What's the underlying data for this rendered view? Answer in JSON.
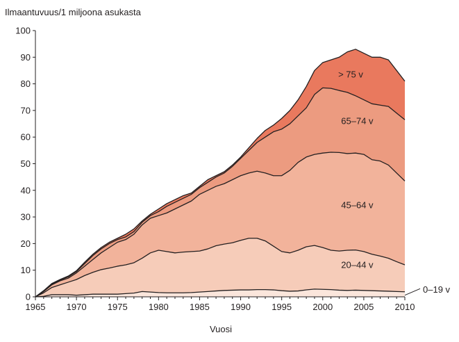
{
  "chart_data": {
    "type": "area",
    "stacked": true,
    "ylabel": "Ilmaantuvuus/1 miljoona asukasta",
    "xlabel": "Vuosi",
    "xlim": [
      1965,
      2010
    ],
    "ylim": [
      0,
      100
    ],
    "x_ticks": [
      1965,
      1970,
      1975,
      1980,
      1985,
      1990,
      1995,
      2000,
      2005,
      2010
    ],
    "y_ticks": [
      0,
      10,
      20,
      30,
      40,
      50,
      60,
      70,
      80,
      90,
      100
    ],
    "x": [
      1965,
      1966,
      1967,
      1968,
      1969,
      1970,
      1971,
      1972,
      1973,
      1974,
      1975,
      1976,
      1977,
      1978,
      1979,
      1980,
      1981,
      1982,
      1983,
      1984,
      1985,
      1986,
      1987,
      1988,
      1989,
      1990,
      1991,
      1992,
      1993,
      1994,
      1995,
      1996,
      1997,
      1998,
      1999,
      2000,
      2001,
      2002,
      2003,
      2004,
      2005,
      2006,
      2007,
      2008,
      2009,
      2010
    ],
    "cumulative_series": [
      {
        "name": "0–19 v",
        "color": "#fbe6dc",
        "top": [
          0,
          0.2,
          0.8,
          0.8,
          0.8,
          0.6,
          0.8,
          1,
          1,
          1,
          1,
          1.2,
          1.4,
          2,
          1.8,
          1.6,
          1.5,
          1.5,
          1.5,
          1.6,
          1.8,
          2,
          2.2,
          2.4,
          2.5,
          2.6,
          2.6,
          2.7,
          2.7,
          2.6,
          2.3,
          2.1,
          2.2,
          2.6,
          2.9,
          2.8,
          2.7,
          2.5,
          2.4,
          2.5,
          2.4,
          2.3,
          2.2,
          2.1,
          2,
          1.9
        ]
      },
      {
        "name": "20–44 v",
        "color": "#f6ccb9",
        "top": [
          0,
          1.5,
          3.5,
          4.5,
          5.5,
          6.5,
          8,
          9.2,
          10.2,
          10.8,
          11.5,
          12,
          12.8,
          14.5,
          16.5,
          17.5,
          17,
          16.5,
          16.8,
          17,
          17.2,
          18,
          19.2,
          19.8,
          20.3,
          21.2,
          22,
          22,
          21,
          19,
          17,
          16.5,
          17.5,
          18.8,
          19.3,
          18.5,
          17.5,
          17.2,
          17.5,
          17.6,
          17,
          16,
          15.3,
          14.5,
          13.2,
          12
        ]
      },
      {
        "name": "45–64 v",
        "color": "#f2b39b",
        "top": [
          0,
          2,
          4.5,
          6,
          7,
          9,
          11.5,
          14,
          16.5,
          18.5,
          20.5,
          21.5,
          23.5,
          27,
          29.5,
          30.5,
          31.5,
          33,
          34.5,
          36,
          38.5,
          40,
          41.5,
          42.5,
          44,
          45.5,
          46.5,
          47.2,
          46.5,
          45.5,
          45.5,
          47.5,
          50.5,
          52.5,
          53.5,
          54,
          54.3,
          54.2,
          53.8,
          54,
          53.5,
          51.5,
          51,
          49.5,
          46.5,
          43.5
        ]
      },
      {
        "name": "65–74 v",
        "color": "#ec9b80",
        "top": [
          0,
          2.2,
          4.8,
          6.3,
          7.5,
          9.5,
          12.5,
          15.5,
          18,
          20,
          21.5,
          22.5,
          24.5,
          28,
          30.5,
          32,
          34,
          35.5,
          37,
          38.5,
          41,
          43,
          45,
          46.5,
          49,
          52,
          55,
          58,
          60,
          62,
          63,
          65,
          68,
          71,
          76,
          78.5,
          78.3,
          77.5,
          76.8,
          75.5,
          74,
          72.5,
          72,
          71.5,
          69,
          66.5
        ]
      },
      {
        "name": "> 75 v",
        "color": "#e9795e",
        "top": [
          0,
          2.3,
          5,
          6.5,
          7.8,
          9.8,
          13,
          16,
          18.5,
          20.5,
          22,
          23.5,
          25.5,
          28.5,
          31,
          33,
          35,
          36.5,
          38,
          39,
          41.5,
          44,
          45.5,
          47,
          49.5,
          52.5,
          56,
          59.5,
          62.5,
          64.5,
          67,
          70,
          74,
          79,
          85,
          88,
          89,
          90,
          92,
          93,
          91.5,
          90,
          90,
          89,
          85,
          81
        ]
      }
    ],
    "annotations": [
      {
        "text": "> 75 v",
        "series": "> 75 v",
        "x": 2003.4,
        "y": 83.5
      },
      {
        "text": "65–74 v",
        "series": "65–74 v",
        "x": 2004.2,
        "y": 66
      },
      {
        "text": "45–64 v",
        "series": "45–64 v",
        "x": 2004.2,
        "y": 34.5
      },
      {
        "text": "20–44 v",
        "series": "20–44 v",
        "x": 2004.2,
        "y": 12
      },
      {
        "text": "0–19 v",
        "series": "0–19 v",
        "x": 2012.2,
        "y": 2.8,
        "leader_to": [
          2010,
          0.6
        ]
      }
    ]
  }
}
